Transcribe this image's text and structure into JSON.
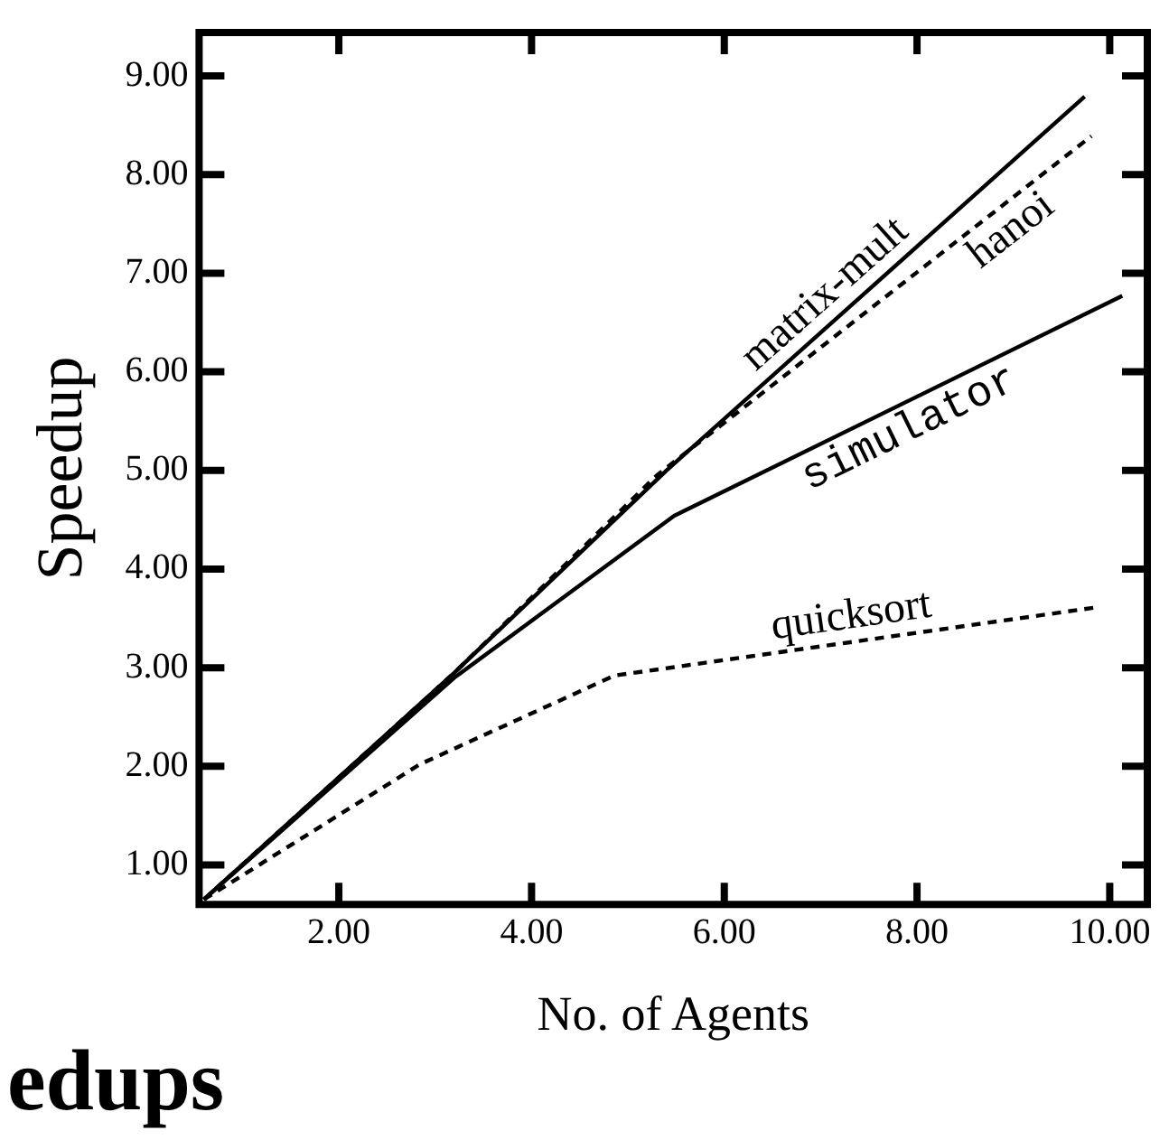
{
  "chart_data": {
    "type": "line",
    "xlabel": "No. of Agents",
    "ylabel": "Speedup",
    "xlim": [
      0.55,
      10.39
    ],
    "ylim": [
      0.6,
      9.44
    ],
    "xticks": [
      {
        "value": 2,
        "label": "2.00"
      },
      {
        "value": 4,
        "label": "4.00"
      },
      {
        "value": 6,
        "label": "6.00"
      },
      {
        "value": 8,
        "label": "8.00"
      },
      {
        "value": 10,
        "label": "10.00"
      }
    ],
    "yticks": [
      {
        "value": 1,
        "label": "1.00"
      },
      {
        "value": 2,
        "label": "2.00"
      },
      {
        "value": 3,
        "label": "3.00"
      },
      {
        "value": 4,
        "label": "4.00"
      },
      {
        "value": 5,
        "label": "5.00"
      },
      {
        "value": 6,
        "label": "6.00"
      },
      {
        "value": 7,
        "label": "7.00"
      },
      {
        "value": 8,
        "label": "8.00"
      },
      {
        "value": 9,
        "label": "9.00"
      }
    ],
    "grid": false,
    "legend": false,
    "marker": "none",
    "series": [
      {
        "name": "matrix-mult",
        "color": "#000000",
        "line_style": "solid",
        "x": [
          0.6,
          3.2,
          5.4,
          9.74
        ],
        "values": [
          0.65,
          2.95,
          5.0,
          8.79
        ]
      },
      {
        "name": "hanoi",
        "color": "#000000",
        "line_style": "dashed",
        "x": [
          0.6,
          3.2,
          5.3,
          9.81
        ],
        "values": [
          0.65,
          2.95,
          4.95,
          8.39
        ]
      },
      {
        "name": "simulator",
        "color": "#000000",
        "line_style": "solid",
        "x": [
          0.6,
          3.2,
          5.48,
          10.13
        ],
        "values": [
          0.65,
          2.9,
          4.54,
          6.77
        ]
      },
      {
        "name": "quicksort",
        "color": "#000000",
        "line_style": "dashed",
        "x": [
          0.6,
          2.84,
          4.86,
          9.85
        ],
        "values": [
          0.65,
          2.02,
          2.92,
          3.61
        ]
      }
    ],
    "annotations": [
      "edups"
    ]
  }
}
